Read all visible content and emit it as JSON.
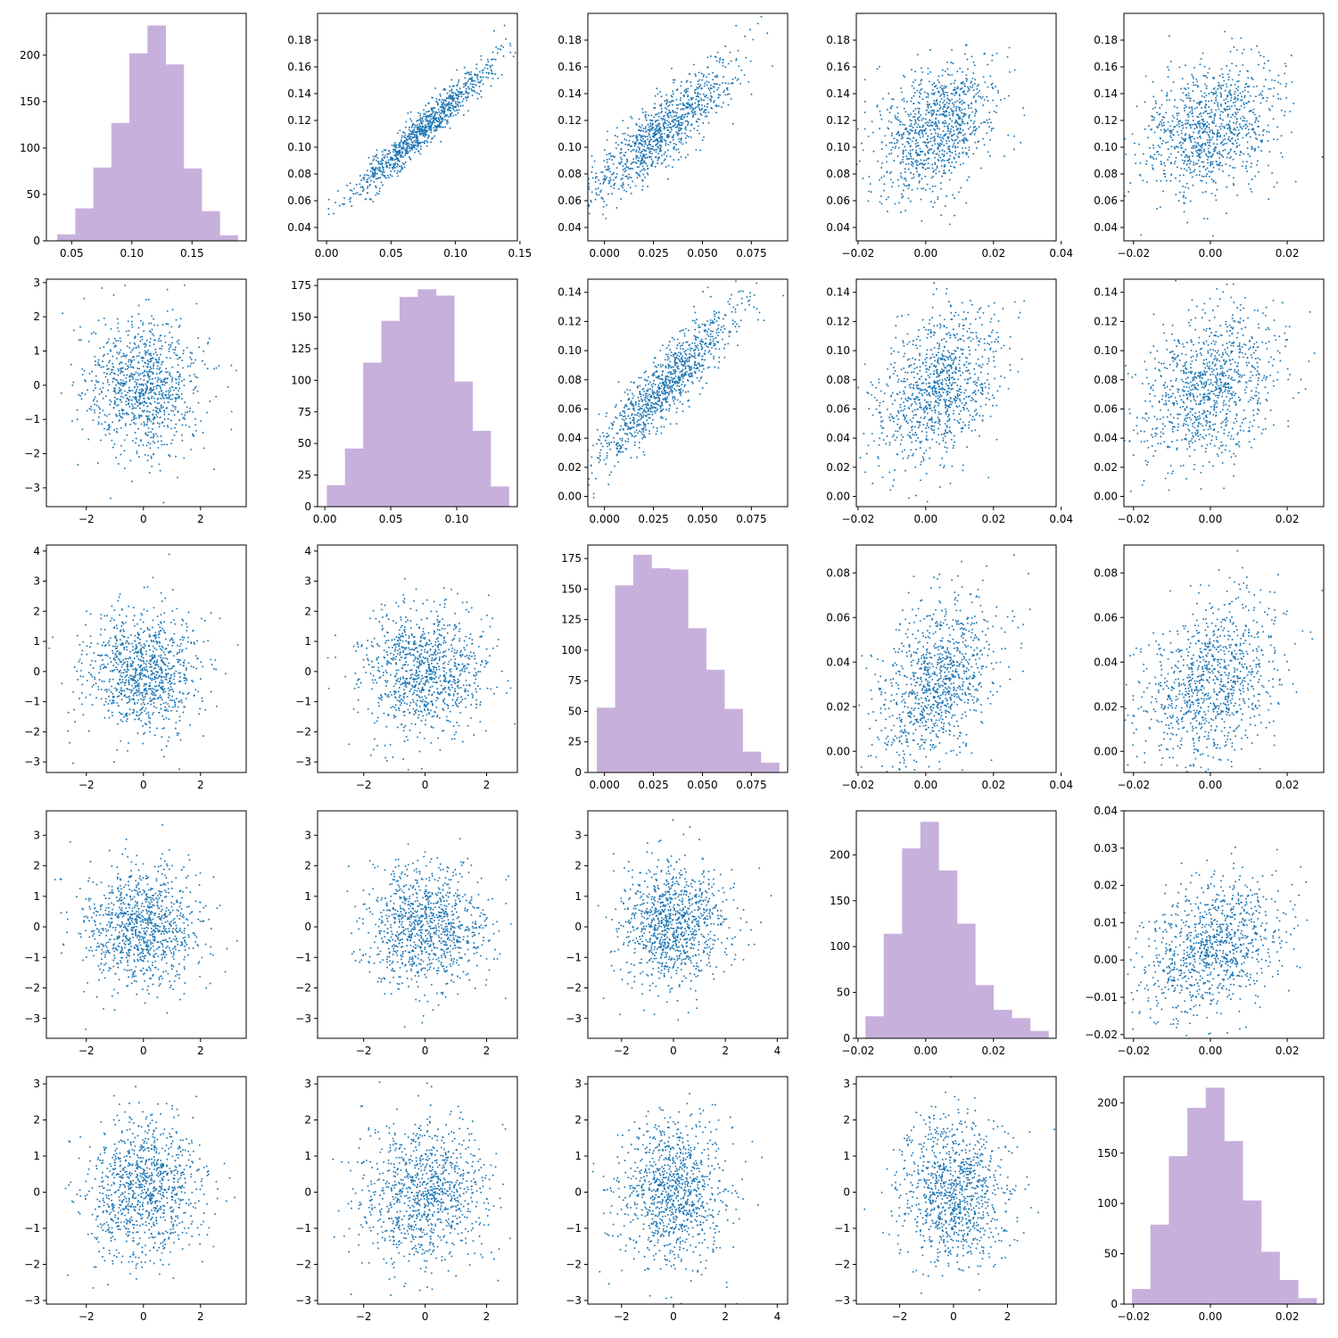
{
  "colors": {
    "hist": "#c8b0dc",
    "point": "#1f77b4",
    "axis": "#000000"
  },
  "chart_data": [
    {
      "row": 0,
      "col": 0,
      "type": "bar",
      "xlim": [
        0.029,
        0.195
      ],
      "ylim": [
        0,
        245
      ],
      "xticks": [
        0.05,
        0.1,
        0.15
      ],
      "xtick_labels": [
        "0.05",
        "0.10",
        "0.15"
      ],
      "yticks": [
        0,
        50,
        100,
        150,
        200
      ],
      "ytick_labels": [
        "0",
        "50",
        "100",
        "150",
        "200"
      ],
      "bins": [
        0.038,
        0.053,
        0.068,
        0.083,
        0.098,
        0.113,
        0.128,
        0.143,
        0.158,
        0.173,
        0.188
      ],
      "counts": [
        7,
        35,
        79,
        127,
        202,
        232,
        190,
        78,
        32,
        6
      ]
    },
    {
      "row": 0,
      "col": 1,
      "type": "scatter",
      "xlim": [
        -0.007,
        0.148
      ],
      "ylim": [
        0.03,
        0.2
      ],
      "xticks": [
        0,
        0.05,
        0.1,
        0.15
      ],
      "xtick_labels": [
        "0.00",
        "0.05",
        "0.10",
        "0.15"
      ],
      "yticks": [
        0.04,
        0.06,
        0.08,
        0.1,
        0.12,
        0.14,
        0.16,
        0.18
      ],
      "ytick_labels": [
        "0.04",
        "0.06",
        "0.08",
        "0.10",
        "0.12",
        "0.14",
        "0.16",
        "0.18"
      ],
      "gen": {
        "mx": 0.074,
        "sx": 0.027,
        "my": 0.113,
        "sy": 0.025,
        "rho": 0.96,
        "n": 1000,
        "seed": 11
      }
    },
    {
      "row": 0,
      "col": 2,
      "type": "scatter",
      "xlim": [
        -0.0085,
        0.0935
      ],
      "ylim": [
        0.03,
        0.2
      ],
      "xticks": [
        0,
        0.025,
        0.05,
        0.075
      ],
      "xtick_labels": [
        "0.000",
        "0.025",
        "0.050",
        "0.075"
      ],
      "yticks": [
        0.04,
        0.06,
        0.08,
        0.1,
        0.12,
        0.14,
        0.16,
        0.18
      ],
      "ytick_labels": [
        "0.04",
        "0.06",
        "0.08",
        "0.10",
        "0.12",
        "0.14",
        "0.16",
        "0.18"
      ],
      "gen": {
        "mx": 0.03,
        "sx": 0.018,
        "my": 0.113,
        "sy": 0.025,
        "rho": 0.86,
        "n": 1000,
        "seed": 12
      }
    },
    {
      "row": 0,
      "col": 3,
      "type": "scatter",
      "xlim": [
        -0.0205,
        0.0385
      ],
      "ylim": [
        0.03,
        0.2
      ],
      "xticks": [
        -0.02,
        0,
        0.02,
        0.04
      ],
      "xtick_labels": [
        "−0.02",
        "0.00",
        "0.02",
        "0.04"
      ],
      "yticks": [
        0.04,
        0.06,
        0.08,
        0.1,
        0.12,
        0.14,
        0.16,
        0.18
      ],
      "ytick_labels": [
        "0.04",
        "0.06",
        "0.08",
        "0.10",
        "0.12",
        "0.14",
        "0.16",
        "0.18"
      ],
      "gen": {
        "mx": 0.003,
        "sx": 0.009,
        "my": 0.113,
        "sy": 0.025,
        "rho": 0.4,
        "n": 1000,
        "seed": 13
      }
    },
    {
      "row": 0,
      "col": 4,
      "type": "scatter",
      "xlim": [
        -0.0225,
        0.0295
      ],
      "ylim": [
        0.03,
        0.2
      ],
      "xticks": [
        -0.02,
        0,
        0.02
      ],
      "xtick_labels": [
        "−0.02",
        "0.00",
        "0.02"
      ],
      "yticks": [
        0.04,
        0.06,
        0.08,
        0.1,
        0.12,
        0.14,
        0.16,
        0.18
      ],
      "ytick_labels": [
        "0.04",
        "0.06",
        "0.08",
        "0.10",
        "0.12",
        "0.14",
        "0.16",
        "0.18"
      ],
      "gen": {
        "mx": 0.0,
        "sx": 0.009,
        "my": 0.113,
        "sy": 0.025,
        "rho": 0.3,
        "n": 1000,
        "seed": 14
      }
    },
    {
      "row": 1,
      "col": 0,
      "type": "scatter",
      "xlim": [
        -3.4,
        3.6
      ],
      "ylim": [
        -3.55,
        3.1
      ],
      "xticks": [
        -2,
        0,
        2
      ],
      "xtick_labels": [
        "−2",
        "0",
        "2"
      ],
      "yticks": [
        -3,
        -2,
        -1,
        0,
        1,
        2,
        3
      ],
      "ytick_labels": [
        "−3",
        "−2",
        "−1",
        "0",
        "1",
        "2",
        "3"
      ],
      "gen": {
        "mx": 0,
        "sx": 1,
        "my": 0,
        "sy": 1,
        "rho": 0,
        "n": 1000,
        "seed": 21
      }
    },
    {
      "row": 1,
      "col": 1,
      "type": "bar",
      "xlim": [
        -0.0055,
        0.146
      ],
      "ylim": [
        0,
        180
      ],
      "xticks": [
        0,
        0.05,
        0.1
      ],
      "xtick_labels": [
        "0.00",
        "0.05",
        "0.10"
      ],
      "yticks": [
        0,
        25,
        50,
        75,
        100,
        125,
        150,
        175
      ],
      "ytick_labels": [
        "0",
        "25",
        "50",
        "75",
        "100",
        "125",
        "150",
        "175"
      ],
      "bins": [
        0.0015,
        0.0153,
        0.0291,
        0.0429,
        0.0567,
        0.0705,
        0.0843,
        0.0981,
        0.1119,
        0.1257,
        0.1395
      ],
      "counts": [
        17,
        46,
        114,
        147,
        166,
        172,
        167,
        99,
        60,
        16
      ]
    },
    {
      "row": 1,
      "col": 2,
      "type": "scatter",
      "xlim": [
        -0.0085,
        0.0935
      ],
      "ylim": [
        -0.007,
        0.149
      ],
      "xticks": [
        0,
        0.025,
        0.05,
        0.075
      ],
      "xtick_labels": [
        "0.000",
        "0.025",
        "0.050",
        "0.075"
      ],
      "yticks": [
        0,
        0.02,
        0.04,
        0.06,
        0.08,
        0.1,
        0.12,
        0.14
      ],
      "ytick_labels": [
        "0.00",
        "0.02",
        "0.04",
        "0.06",
        "0.08",
        "0.10",
        "0.12",
        "0.14"
      ],
      "gen": {
        "mx": 0.03,
        "sx": 0.018,
        "my": 0.074,
        "sy": 0.027,
        "rho": 0.9,
        "n": 1000,
        "seed": 23
      }
    },
    {
      "row": 1,
      "col": 3,
      "type": "scatter",
      "xlim": [
        -0.0205,
        0.0385
      ],
      "ylim": [
        -0.007,
        0.149
      ],
      "xticks": [
        -0.02,
        0,
        0.02,
        0.04
      ],
      "xtick_labels": [
        "−0.02",
        "0.00",
        "0.02",
        "0.04"
      ],
      "yticks": [
        0,
        0.02,
        0.04,
        0.06,
        0.08,
        0.1,
        0.12,
        0.14
      ],
      "ytick_labels": [
        "0.00",
        "0.02",
        "0.04",
        "0.06",
        "0.08",
        "0.10",
        "0.12",
        "0.14"
      ],
      "gen": {
        "mx": 0.003,
        "sx": 0.009,
        "my": 0.074,
        "sy": 0.027,
        "rho": 0.4,
        "n": 1000,
        "seed": 24
      }
    },
    {
      "row": 1,
      "col": 4,
      "type": "scatter",
      "xlim": [
        -0.0225,
        0.0295
      ],
      "ylim": [
        -0.007,
        0.149
      ],
      "xticks": [
        -0.02,
        0,
        0.02
      ],
      "xtick_labels": [
        "−0.02",
        "0.00",
        "0.02"
      ],
      "yticks": [
        0,
        0.02,
        0.04,
        0.06,
        0.08,
        0.1,
        0.12,
        0.14
      ],
      "ytick_labels": [
        "0.00",
        "0.02",
        "0.04",
        "0.06",
        "0.08",
        "0.10",
        "0.12",
        "0.14"
      ],
      "gen": {
        "mx": 0.0,
        "sx": 0.009,
        "my": 0.074,
        "sy": 0.027,
        "rho": 0.3,
        "n": 1000,
        "seed": 25
      }
    },
    {
      "row": 2,
      "col": 0,
      "type": "scatter",
      "xlim": [
        -3.4,
        3.6
      ],
      "ylim": [
        -3.35,
        4.2
      ],
      "xticks": [
        -2,
        0,
        2
      ],
      "xtick_labels": [
        "−2",
        "0",
        "2"
      ],
      "yticks": [
        -3,
        -2,
        -1,
        0,
        1,
        2,
        3,
        4
      ],
      "ytick_labels": [
        "−3",
        "−2",
        "−1",
        "0",
        "1",
        "2",
        "3",
        "4"
      ],
      "gen": {
        "mx": 0,
        "sx": 1,
        "my": 0,
        "sy": 1,
        "rho": 0,
        "n": 1000,
        "seed": 31
      }
    },
    {
      "row": 2,
      "col": 1,
      "type": "scatter",
      "xlim": [
        -3.5,
        3.0
      ],
      "ylim": [
        -3.35,
        4.2
      ],
      "xticks": [
        -2,
        0,
        2
      ],
      "xtick_labels": [
        "−2",
        "0",
        "2"
      ],
      "yticks": [
        -3,
        -2,
        -1,
        0,
        1,
        2,
        3,
        4
      ],
      "ytick_labels": [
        "−3",
        "−2",
        "−1",
        "0",
        "1",
        "2",
        "3",
        "4"
      ],
      "gen": {
        "mx": 0,
        "sx": 1,
        "my": 0,
        "sy": 1,
        "rho": 0,
        "n": 1000,
        "seed": 32
      }
    },
    {
      "row": 2,
      "col": 2,
      "type": "bar",
      "xlim": [
        -0.0085,
        0.0935
      ],
      "ylim": [
        0,
        186
      ],
      "xticks": [
        0,
        0.025,
        0.05,
        0.075
      ],
      "xtick_labels": [
        "0.000",
        "0.025",
        "0.050",
        "0.075"
      ],
      "yticks": [
        0,
        25,
        50,
        75,
        100,
        125,
        150,
        175
      ],
      "ytick_labels": [
        "0",
        "25",
        "50",
        "75",
        "100",
        "125",
        "150",
        "175"
      ],
      "bins": [
        -0.0039,
        0.0054,
        0.0147,
        0.024,
        0.0333,
        0.0426,
        0.0519,
        0.0612,
        0.0705,
        0.0798,
        0.0891
      ],
      "counts": [
        53,
        153,
        178,
        167,
        166,
        118,
        84,
        52,
        17,
        8
      ]
    },
    {
      "row": 2,
      "col": 3,
      "type": "scatter",
      "xlim": [
        -0.0205,
        0.0385
      ],
      "ylim": [
        -0.0095,
        0.0925
      ],
      "xticks": [
        -0.02,
        0,
        0.02,
        0.04
      ],
      "xtick_labels": [
        "−0.02",
        "0.00",
        "0.02",
        "0.04"
      ],
      "yticks": [
        0,
        0.02,
        0.04,
        0.06,
        0.08
      ],
      "ytick_labels": [
        "0.00",
        "0.02",
        "0.04",
        "0.06",
        "0.08"
      ],
      "gen": {
        "mx": 0.003,
        "sx": 0.009,
        "my": 0.03,
        "sy": 0.018,
        "rho": 0.4,
        "n": 1000,
        "seed": 34
      }
    },
    {
      "row": 2,
      "col": 4,
      "type": "scatter",
      "xlim": [
        -0.0225,
        0.0295
      ],
      "ylim": [
        -0.0095,
        0.0925
      ],
      "xticks": [
        -0.02,
        0,
        0.02
      ],
      "xtick_labels": [
        "−0.02",
        "0.00",
        "0.02"
      ],
      "yticks": [
        0,
        0.02,
        0.04,
        0.06,
        0.08
      ],
      "ytick_labels": [
        "0.00",
        "0.02",
        "0.04",
        "0.06",
        "0.08"
      ],
      "gen": {
        "mx": 0.0,
        "sx": 0.009,
        "my": 0.03,
        "sy": 0.018,
        "rho": 0.3,
        "n": 1000,
        "seed": 35
      }
    },
    {
      "row": 3,
      "col": 0,
      "type": "scatter",
      "xlim": [
        -3.4,
        3.6
      ],
      "ylim": [
        -3.65,
        3.8
      ],
      "xticks": [
        -2,
        0,
        2
      ],
      "xtick_labels": [
        "−2",
        "0",
        "2"
      ],
      "yticks": [
        -3,
        -2,
        -1,
        0,
        1,
        2,
        3
      ],
      "ytick_labels": [
        "−3",
        "−2",
        "−1",
        "0",
        "1",
        "2",
        "3"
      ],
      "gen": {
        "mx": 0,
        "sx": 1,
        "my": 0,
        "sy": 1,
        "rho": 0,
        "n": 1000,
        "seed": 41
      }
    },
    {
      "row": 3,
      "col": 1,
      "type": "scatter",
      "xlim": [
        -3.5,
        3.0
      ],
      "ylim": [
        -3.65,
        3.8
      ],
      "xticks": [
        -2,
        0,
        2
      ],
      "xtick_labels": [
        "−2",
        "0",
        "2"
      ],
      "yticks": [
        -3,
        -2,
        -1,
        0,
        1,
        2,
        3
      ],
      "ytick_labels": [
        "−3",
        "−2",
        "−1",
        "0",
        "1",
        "2",
        "3"
      ],
      "gen": {
        "mx": 0,
        "sx": 1,
        "my": 0,
        "sy": 1,
        "rho": 0,
        "n": 1000,
        "seed": 42
      }
    },
    {
      "row": 3,
      "col": 2,
      "type": "scatter",
      "xlim": [
        -3.3,
        4.4
      ],
      "ylim": [
        -3.65,
        3.8
      ],
      "xticks": [
        -2,
        0,
        2,
        4
      ],
      "xtick_labels": [
        "−2",
        "0",
        "2",
        "4"
      ],
      "yticks": [
        -3,
        -2,
        -1,
        0,
        1,
        2,
        3
      ],
      "ytick_labels": [
        "−3",
        "−2",
        "−1",
        "0",
        "1",
        "2",
        "3"
      ],
      "gen": {
        "mx": 0,
        "sx": 1,
        "my": 0,
        "sy": 1,
        "rho": 0,
        "n": 1000,
        "seed": 43
      }
    },
    {
      "row": 3,
      "col": 3,
      "type": "bar",
      "xlim": [
        -0.0205,
        0.0385
      ],
      "ylim": [
        0,
        248
      ],
      "xticks": [
        -0.02,
        0,
        0.02
      ],
      "xtick_labels": [
        "−0.02",
        "0.00",
        "0.02"
      ],
      "yticks": [
        0,
        50,
        100,
        150,
        200
      ],
      "ytick_labels": [
        "0",
        "50",
        "100",
        "150",
        "200"
      ],
      "bins": [
        -0.0178,
        -0.0124,
        -0.007,
        -0.0016,
        0.0038,
        0.0092,
        0.0146,
        0.02,
        0.0254,
        0.0308,
        0.0362
      ],
      "counts": [
        24,
        114,
        207,
        236,
        183,
        125,
        58,
        31,
        22,
        8
      ]
    },
    {
      "row": 3,
      "col": 4,
      "type": "scatter",
      "xlim": [
        -0.0225,
        0.0295
      ],
      "ylim": [
        -0.021,
        0.04
      ],
      "xticks": [
        -0.02,
        0,
        0.02
      ],
      "xtick_labels": [
        "−0.02",
        "0.00",
        "0.02"
      ],
      "yticks": [
        -0.02,
        -0.01,
        0,
        0.01,
        0.02,
        0.03,
        0.04
      ],
      "ytick_labels": [
        "−0.02",
        "−0.01",
        "0.00",
        "0.01",
        "0.02",
        "0.03",
        "0.04"
      ],
      "gen": {
        "mx": 0.0,
        "sx": 0.009,
        "my": 0.003,
        "sy": 0.009,
        "rho": 0.3,
        "n": 1000,
        "seed": 45
      }
    },
    {
      "row": 4,
      "col": 0,
      "type": "scatter",
      "xlim": [
        -3.4,
        3.6
      ],
      "ylim": [
        -3.1,
        3.2
      ],
      "xticks": [
        -2,
        0,
        2
      ],
      "xtick_labels": [
        "−2",
        "0",
        "2"
      ],
      "yticks": [
        -3,
        -2,
        -1,
        0,
        1,
        2,
        3
      ],
      "ytick_labels": [
        "−3",
        "−2",
        "−1",
        "0",
        "1",
        "2",
        "3"
      ],
      "gen": {
        "mx": 0,
        "sx": 1,
        "my": 0,
        "sy": 1,
        "rho": 0,
        "n": 1000,
        "seed": 51
      }
    },
    {
      "row": 4,
      "col": 1,
      "type": "scatter",
      "xlim": [
        -3.5,
        3.0
      ],
      "ylim": [
        -3.1,
        3.2
      ],
      "xticks": [
        -2,
        0,
        2
      ],
      "xtick_labels": [
        "−2",
        "0",
        "2"
      ],
      "yticks": [
        -3,
        -2,
        -1,
        0,
        1,
        2,
        3
      ],
      "ytick_labels": [
        "−3",
        "−2",
        "−1",
        "0",
        "1",
        "2",
        "3"
      ],
      "gen": {
        "mx": 0,
        "sx": 1,
        "my": 0,
        "sy": 1,
        "rho": 0,
        "n": 1000,
        "seed": 52
      }
    },
    {
      "row": 4,
      "col": 2,
      "type": "scatter",
      "xlim": [
        -3.3,
        4.4
      ],
      "ylim": [
        -3.1,
        3.2
      ],
      "xticks": [
        -2,
        0,
        2,
        4
      ],
      "xtick_labels": [
        "−2",
        "0",
        "2",
        "4"
      ],
      "yticks": [
        -3,
        -2,
        -1,
        0,
        1,
        2,
        3
      ],
      "ytick_labels": [
        "−3",
        "−2",
        "−1",
        "0",
        "1",
        "2",
        "3"
      ],
      "gen": {
        "mx": 0,
        "sx": 1,
        "my": 0,
        "sy": 1,
        "rho": 0,
        "n": 1000,
        "seed": 53
      }
    },
    {
      "row": 4,
      "col": 3,
      "type": "scatter",
      "xlim": [
        -3.6,
        3.8
      ],
      "ylim": [
        -3.1,
        3.2
      ],
      "xticks": [
        -2,
        0,
        2
      ],
      "xtick_labels": [
        "−2",
        "0",
        "2"
      ],
      "yticks": [
        -3,
        -2,
        -1,
        0,
        1,
        2,
        3
      ],
      "ytick_labels": [
        "−3",
        "−2",
        "−1",
        "0",
        "1",
        "2",
        "3"
      ],
      "gen": {
        "mx": 0,
        "sx": 1,
        "my": 0,
        "sy": 1,
        "rho": 0,
        "n": 1000,
        "seed": 54
      }
    },
    {
      "row": 4,
      "col": 4,
      "type": "bar",
      "xlim": [
        -0.0225,
        0.0295
      ],
      "ylim": [
        0,
        226
      ],
      "xticks": [
        -0.02,
        0,
        0.02
      ],
      "xtick_labels": [
        "−0.02",
        "0.00",
        "0.02"
      ],
      "yticks": [
        0,
        50,
        100,
        150,
        200
      ],
      "ytick_labels": [
        "0",
        "50",
        "100",
        "150",
        "200"
      ],
      "bins": [
        -0.0204,
        -0.0156,
        -0.0108,
        -0.006,
        -0.0012,
        0.0036,
        0.0084,
        0.0132,
        0.018,
        0.0228,
        0.0276
      ],
      "counts": [
        15,
        79,
        147,
        195,
        215,
        162,
        103,
        52,
        24,
        6
      ]
    }
  ]
}
